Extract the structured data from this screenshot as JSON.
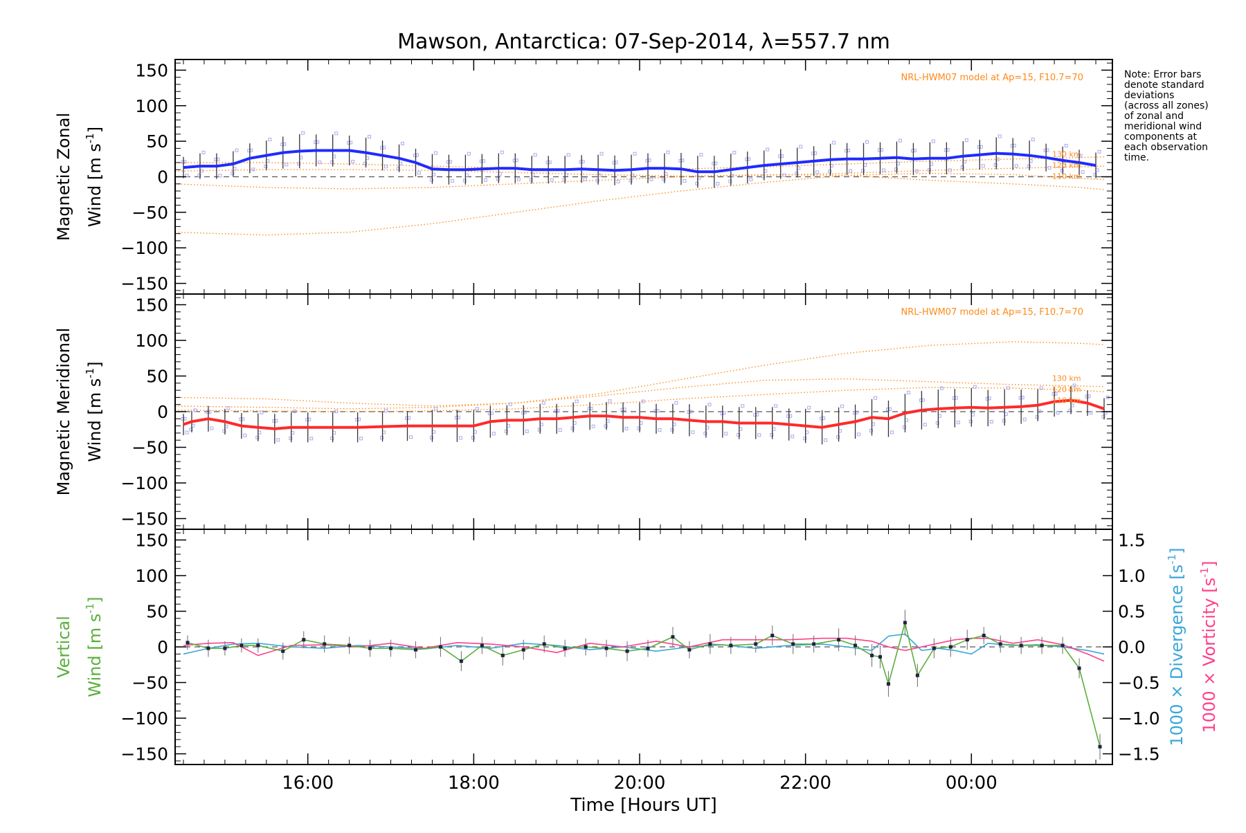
{
  "title": "Mawson, Antarctica: 07-Sep-2014, λ=557.7 nm",
  "note": "Note: Error bars denote standard deviations (across all zones) of zonal and meridional wind components at each observation time.",
  "note_lines": [
    "Note: Error bars",
    "denote standard",
    "deviations",
    "(across all zones)",
    "of zonal and",
    "meridional wind",
    "components at",
    "each observation",
    "time."
  ],
  "colors": {
    "zonal": "#1f2bff",
    "meridional": "#ff2a2a",
    "vertical": "#5aaf3a",
    "divergence": "#3aa6d8",
    "vorticity": "#ff3f8a",
    "model": "#ff8a1a",
    "scatter": "#a9a9f0",
    "errbar": "#333333"
  },
  "chart_data": {
    "type": "line",
    "xlabel": "Time [Hours UT]",
    "x_ticks": [
      {
        "hour": 16,
        "label": "16:00"
      },
      {
        "hour": 18,
        "label": "18:00"
      },
      {
        "hour": 20,
        "label": "20:00"
      },
      {
        "hour": 22,
        "label": "22:00"
      },
      {
        "hour": 24,
        "label": "00:00"
      }
    ],
    "xlim": [
      14.4,
      25.7
    ],
    "y_ticks": [
      150,
      100,
      50,
      0,
      -50,
      -100,
      -150
    ],
    "y_tick_labels": [
      "150",
      "100",
      "50",
      "0",
      "−50",
      "−100",
      "−150"
    ],
    "ylim": [
      -165,
      165
    ],
    "panels": [
      {
        "id": "zonal",
        "ylabel_line1": "Magnetic Zonal",
        "ylabel_line2": "Wind [m s",
        "ylabel_sup": "-1",
        "ylabel_end": "]",
        "model_label": "NRL-HWM07 model at Ap=15, F10.7=70",
        "height_labels": [
          "130 km",
          "120 km",
          "110 km"
        ],
        "series_x": [
          14.5,
          14.7,
          14.9,
          15.1,
          15.3,
          15.5,
          15.7,
          15.9,
          16.1,
          16.3,
          16.5,
          16.7,
          16.9,
          17.1,
          17.3,
          17.5,
          17.7,
          17.9,
          18.1,
          18.3,
          18.5,
          18.7,
          18.9,
          19.1,
          19.3,
          19.5,
          19.7,
          19.9,
          20.1,
          20.3,
          20.5,
          20.7,
          20.9,
          21.1,
          21.3,
          21.5,
          21.7,
          21.9,
          22.1,
          22.3,
          22.5,
          22.7,
          22.9,
          23.1,
          23.3,
          23.5,
          23.7,
          23.9,
          24.1,
          24.3,
          24.5,
          24.7,
          24.9,
          25.1,
          25.3,
          25.5
        ],
        "series_y": [
          13,
          15,
          15,
          18,
          26,
          30,
          34,
          36,
          37,
          37,
          37,
          34,
          30,
          26,
          20,
          11,
          10,
          10,
          11,
          12,
          12,
          10,
          10,
          10,
          11,
          10,
          9,
          10,
          12,
          12,
          11,
          7,
          7,
          10,
          13,
          16,
          18,
          20,
          22,
          24,
          25,
          25,
          26,
          27,
          25,
          26,
          26,
          29,
          31,
          33,
          32,
          30,
          27,
          23,
          20,
          16
        ],
        "error": [
          10,
          12,
          12,
          12,
          14,
          14,
          15,
          16,
          15,
          15,
          14,
          14,
          14,
          13,
          13,
          14,
          14,
          14,
          14,
          14,
          14,
          13,
          13,
          13,
          13,
          14,
          14,
          14,
          14,
          14,
          15,
          15,
          15,
          15,
          15,
          14,
          14,
          14,
          14,
          15,
          15,
          15,
          15,
          15,
          15,
          15,
          15,
          14,
          14,
          15,
          15,
          14,
          13,
          13,
          12,
          12
        ],
        "models": [
          {
            "label": "130 km",
            "x": [
              14.4,
              15.5,
              16.5,
              17.5,
              18.5,
              19.5,
              20.5,
              21.5,
              22.5,
              23.5,
              24.5,
              25.3,
              25.6
            ],
            "y": [
              -10,
              -15,
              -17,
              -15,
              -10,
              -5,
              0,
              3,
              2,
              -5,
              -10,
              -15,
              -18
            ]
          },
          {
            "label": "120 km",
            "x": [
              14.4,
              15.5,
              16.5,
              17.5,
              18.5,
              19.5,
              20.5,
              21.5,
              22.5,
              23.5,
              24.5,
              25.3,
              25.6
            ],
            "y": [
              -78,
              -82,
              -78,
              -66,
              -50,
              -34,
              -20,
              -8,
              2,
              5,
              3,
              -2,
              -4
            ]
          },
          {
            "label": "110 km",
            "x": [
              14.4,
              15.5,
              16.5,
              17.5,
              18.5,
              19.5,
              20.5,
              21.5,
              22.5,
              23.5,
              24.5,
              25.3,
              25.6
            ],
            "y": [
              8,
              10,
              10,
              9,
              6,
              3,
              1,
              2,
              5,
              9,
              12,
              14,
              15
            ]
          },
          {
            "label": "130 km b",
            "x": [
              14.4,
              15.5,
              16.5,
              17.5,
              18.5,
              19.5,
              20.5,
              21.5,
              22.5,
              23.5,
              24.5,
              25.3,
              25.6
            ],
            "y": [
              20,
              20,
              18,
              15,
              12,
              10,
              11,
              14,
              18,
              22,
              25,
              27,
              28
            ]
          }
        ]
      },
      {
        "id": "meridional",
        "ylabel_line1": "Magnetic Meridional",
        "ylabel_line2": "Wind [m s",
        "ylabel_sup": "-1",
        "ylabel_end": "]",
        "model_label": "NRL-HWM07 model at Ap=15, F10.7=70",
        "height_labels": [
          "130 km",
          "120 km",
          "110 km"
        ],
        "series_x": [
          14.5,
          14.6,
          14.8,
          15.0,
          15.2,
          15.4,
          15.6,
          15.8,
          16.0,
          16.3,
          16.6,
          16.9,
          17.2,
          17.5,
          17.8,
          18.0,
          18.2,
          18.4,
          18.6,
          18.8,
          19.0,
          19.2,
          19.4,
          19.6,
          19.8,
          20.0,
          20.2,
          20.4,
          20.6,
          20.8,
          21.0,
          21.2,
          21.4,
          21.6,
          21.8,
          22.0,
          22.2,
          22.4,
          22.6,
          22.8,
          23.0,
          23.2,
          23.4,
          23.6,
          23.8,
          24.0,
          24.2,
          24.4,
          24.6,
          24.8,
          25.0,
          25.2,
          25.4,
          25.6
        ],
        "series_y": [
          -18,
          -14,
          -10,
          -14,
          -20,
          -22,
          -24,
          -22,
          -22,
          -22,
          -22,
          -21,
          -20,
          -20,
          -20,
          -20,
          -14,
          -12,
          -12,
          -10,
          -10,
          -8,
          -6,
          -6,
          -8,
          -8,
          -10,
          -10,
          -12,
          -14,
          -14,
          -16,
          -16,
          -16,
          -18,
          -20,
          -22,
          -18,
          -14,
          -8,
          -10,
          -2,
          2,
          4,
          5,
          6,
          5,
          6,
          7,
          9,
          14,
          16,
          12,
          4
        ],
        "error": [
          10,
          10,
          12,
          12,
          12,
          13,
          14,
          14,
          14,
          14,
          14,
          14,
          14,
          15,
          15,
          15,
          15,
          14,
          14,
          14,
          14,
          14,
          13,
          13,
          14,
          14,
          14,
          14,
          15,
          15,
          15,
          15,
          15,
          15,
          15,
          16,
          16,
          16,
          16,
          17,
          17,
          18,
          18,
          18,
          18,
          18,
          17,
          17,
          16,
          15,
          14,
          13,
          12,
          10
        ],
        "models": [
          {
            "label": "130 km",
            "x": [
              14.4,
              15.5,
              16.5,
              17.5,
              18.5,
              19.5,
              20.5,
              21.5,
              22.5,
              23.5,
              24.5,
              25.3,
              25.6
            ],
            "y": [
              20,
              18,
              12,
              8,
              12,
              25,
              45,
              65,
              82,
              93,
              98,
              96,
              94
            ]
          },
          {
            "label": "120 km",
            "x": [
              14.4,
              15.5,
              16.5,
              17.5,
              18.5,
              19.5,
              20.5,
              21.5,
              22.5,
              23.5,
              24.5,
              25.3,
              25.6
            ],
            "y": [
              8,
              6,
              4,
              6,
              12,
              22,
              34,
              44,
              46,
              42,
              38,
              36,
              35
            ]
          },
          {
            "label": "110 km",
            "x": [
              14.4,
              15.5,
              16.5,
              17.5,
              18.5,
              19.5,
              20.5,
              21.5,
              22.5,
              23.5,
              24.5,
              25.3,
              25.6
            ],
            "y": [
              2,
              1,
              0,
              1,
              4,
              10,
              18,
              24,
              30,
              34,
              33,
              30,
              28
            ]
          }
        ]
      },
      {
        "id": "vertical",
        "ylabel_line1": "Vertical",
        "ylabel_line2": "Wind [m s",
        "ylabel_sup": "-1",
        "ylabel_end": "]",
        "right_ticks": [
          1.5,
          1.0,
          0.5,
          0.0,
          -0.5,
          -1.0,
          -1.5
        ],
        "right_tick_labels": [
          "1.5",
          "1.0",
          "0.5",
          "0.0",
          "−0.5",
          "−1.0",
          "−1.5"
        ],
        "right_ylim": [
          -1.65,
          1.65
        ],
        "right_label_div": "1000 × Divergence [s",
        "right_label_vort": "1000 × Vorticity [s",
        "right_label_sup": "-1",
        "right_label_end": "]",
        "vertical_x": [
          14.55,
          14.8,
          15.0,
          15.2,
          15.4,
          15.7,
          15.95,
          16.2,
          16.5,
          16.75,
          17.0,
          17.3,
          17.6,
          17.85,
          18.1,
          18.35,
          18.6,
          18.85,
          19.1,
          19.35,
          19.6,
          19.85,
          20.1,
          20.4,
          20.6,
          20.85,
          21.1,
          21.4,
          21.6,
          21.85,
          22.1,
          22.4,
          22.6,
          22.8,
          22.9,
          23.0,
          23.2,
          23.35,
          23.55,
          23.75,
          23.95,
          24.15,
          24.35,
          24.6,
          24.85,
          25.1,
          25.3,
          25.55
        ],
        "vertical_y": [
          6,
          -2,
          -2,
          2,
          2,
          -6,
          10,
          4,
          2,
          -2,
          -2,
          -4,
          0,
          -20,
          2,
          -12,
          -4,
          4,
          -2,
          0,
          -2,
          -6,
          -2,
          14,
          -4,
          4,
          2,
          4,
          16,
          4,
          4,
          10,
          2,
          -12,
          -14,
          -52,
          34,
          -40,
          -2,
          0,
          10,
          16,
          4,
          2,
          2,
          2,
          -30,
          -140
        ],
        "vertical_err": [
          10,
          12,
          10,
          10,
          10,
          12,
          12,
          12,
          12,
          12,
          12,
          12,
          14,
          14,
          12,
          14,
          14,
          12,
          12,
          12,
          12,
          14,
          12,
          14,
          12,
          14,
          12,
          12,
          14,
          14,
          12,
          16,
          14,
          16,
          16,
          18,
          18,
          16,
          14,
          14,
          14,
          12,
          12,
          12,
          12,
          12,
          14,
          18
        ],
        "divergence_x": [
          14.5,
          14.8,
          15.1,
          15.4,
          15.8,
          16.2,
          16.6,
          17.0,
          17.4,
          17.8,
          18.2,
          18.6,
          19.0,
          19.4,
          19.8,
          20.2,
          20.6,
          21.0,
          21.4,
          21.8,
          22.2,
          22.5,
          22.8,
          23.0,
          23.2,
          23.4,
          23.6,
          23.8,
          24.0,
          24.2,
          24.5,
          24.8,
          25.1,
          25.4,
          25.6
        ],
        "divergence_y": [
          -0.1,
          -0.02,
          0.04,
          0.05,
          0.0,
          -0.02,
          0.02,
          0.0,
          -0.03,
          0.02,
          -0.02,
          0.05,
          0.02,
          -0.04,
          0.0,
          -0.06,
          0.0,
          0.03,
          -0.02,
          0.02,
          0.04,
          0.0,
          -0.05,
          0.15,
          0.18,
          -0.05,
          -0.02,
          -0.05,
          -0.1,
          0.05,
          0.02,
          0.03,
          0.0,
          -0.05,
          -0.1
        ],
        "vorticity_x": [
          14.5,
          14.8,
          15.1,
          15.4,
          15.8,
          16.2,
          16.6,
          17.0,
          17.4,
          17.8,
          18.2,
          18.6,
          19.0,
          19.4,
          19.8,
          20.2,
          20.6,
          21.0,
          21.4,
          21.8,
          22.2,
          22.5,
          22.8,
          23.0,
          23.2,
          23.4,
          23.6,
          23.8,
          24.0,
          24.2,
          24.5,
          24.8,
          25.1,
          25.4,
          25.6
        ],
        "vorticity_y": [
          0.02,
          0.05,
          0.06,
          -0.12,
          0.02,
          0.03,
          0.0,
          0.05,
          -0.02,
          0.06,
          0.04,
          0.0,
          -0.08,
          0.05,
          0.0,
          0.08,
          0.0,
          0.1,
          0.1,
          0.1,
          0.12,
          0.12,
          0.08,
          0.0,
          -0.05,
          0.0,
          0.05,
          0.1,
          0.12,
          0.12,
          0.05,
          0.1,
          0.03,
          -0.1,
          -0.2
        ]
      }
    ]
  }
}
